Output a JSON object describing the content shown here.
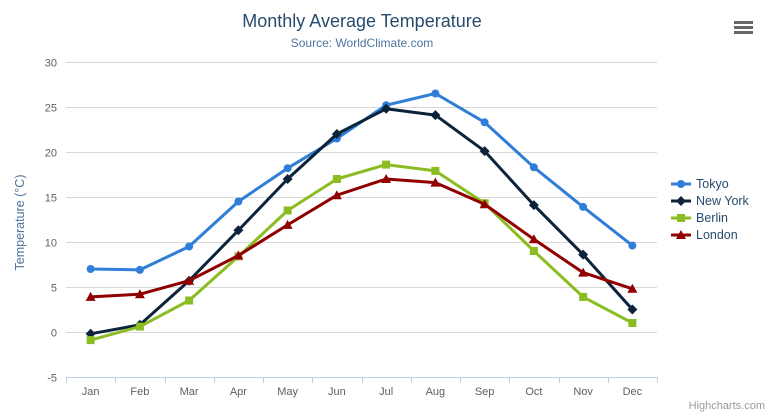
{
  "chart_data": {
    "type": "line",
    "title": "Monthly Average Temperature",
    "subtitle": "Source: WorldClimate.com",
    "xlabel": "",
    "ylabel": "Temperature (°C)",
    "categories": [
      "Jan",
      "Feb",
      "Mar",
      "Apr",
      "May",
      "Jun",
      "Jul",
      "Aug",
      "Sep",
      "Oct",
      "Nov",
      "Dec"
    ],
    "ylim": [
      -5,
      30
    ],
    "yticks": [
      -5,
      0,
      5,
      10,
      15,
      20,
      25,
      30
    ],
    "grid": true,
    "legend_position": "right",
    "series": [
      {
        "name": "Tokyo",
        "marker": "circle",
        "color": "#2f7ed8",
        "values": [
          7.0,
          6.9,
          9.5,
          14.5,
          18.2,
          21.5,
          25.2,
          26.5,
          23.3,
          18.3,
          13.9,
          9.6
        ]
      },
      {
        "name": "New York",
        "marker": "diamond",
        "color": "#0d233a",
        "values": [
          -0.2,
          0.8,
          5.7,
          11.3,
          17.0,
          22.0,
          24.8,
          24.1,
          20.1,
          14.1,
          8.6,
          2.5
        ]
      },
      {
        "name": "Berlin",
        "marker": "square",
        "color": "#8bbc21",
        "values": [
          -0.9,
          0.6,
          3.5,
          8.4,
          13.5,
          17.0,
          18.6,
          17.9,
          14.3,
          9.0,
          3.9,
          1.0
        ]
      },
      {
        "name": "London",
        "marker": "triangle",
        "color": "#910000",
        "values": [
          3.9,
          4.2,
          5.7,
          8.5,
          11.9,
          15.2,
          17.0,
          16.6,
          14.2,
          10.3,
          6.6,
          4.8
        ]
      }
    ]
  },
  "credits_label": "Highcharts.com",
  "colors": {
    "title": "#274b6d",
    "subtitle": "#4d759e",
    "axis_label": "#606060",
    "axis_title": "#4d759e",
    "grid": "#d8d8d8",
    "axis_line": "#c0d0e0",
    "legend_text": "#274b6d",
    "credits": "#999999"
  }
}
